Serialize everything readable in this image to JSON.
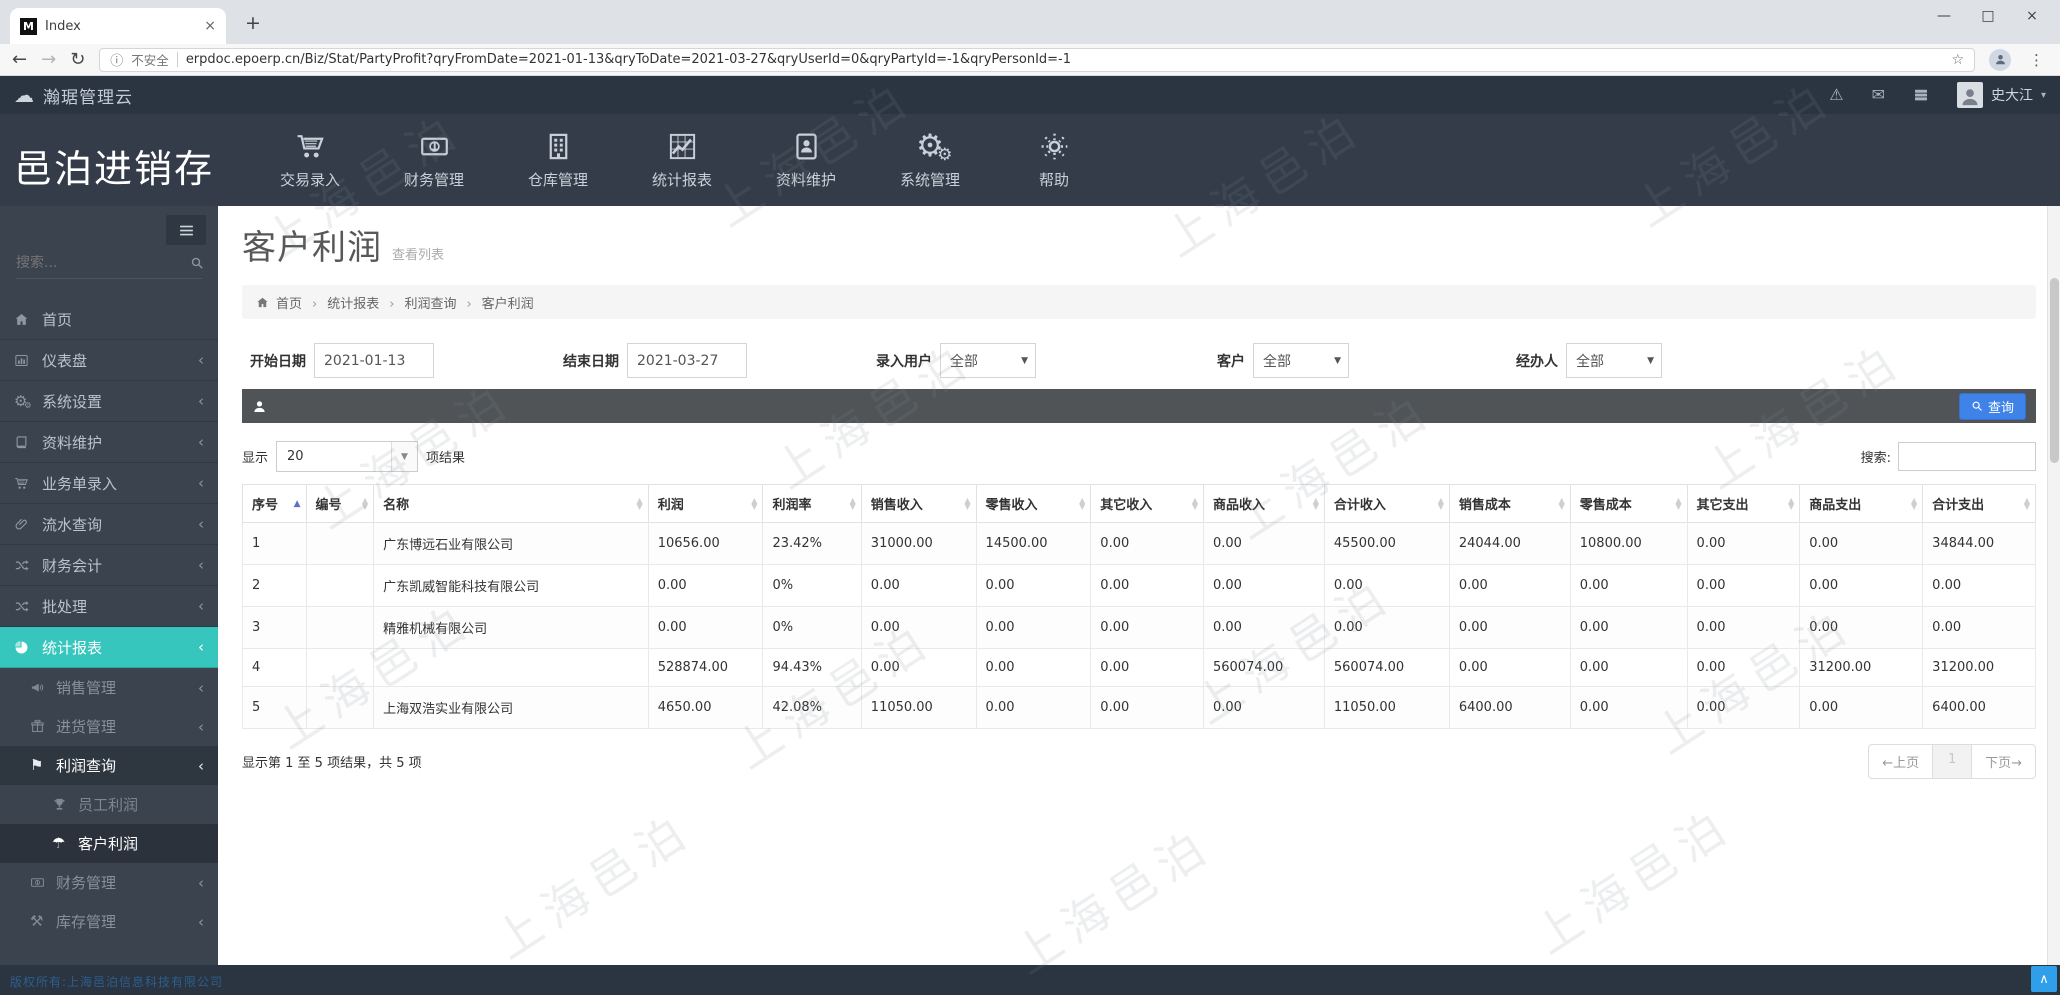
{
  "browser": {
    "tab": {
      "title": "Index",
      "favicon_letter": "M"
    },
    "security_label": "不安全",
    "url": "erpdoc.epoerp.cn/Biz/Stat/PartyProfit?qryFromDate=2021-01-13&qryToDate=2021-03-27&qryUserId=0&qryPartyId=-1&qryPersonId=-1"
  },
  "appbar": {
    "brand": "瀚琚管理云",
    "username": "史大江"
  },
  "navband": {
    "app_title": "邑泊进销存"
  },
  "top_menu": [
    {
      "key": "transaction-entry",
      "icon": "cart-icon",
      "label": "交易录入"
    },
    {
      "key": "finance-management",
      "icon": "banknote-icon",
      "label": "财务管理"
    },
    {
      "key": "warehouse-management",
      "icon": "building-icon",
      "label": "仓库管理"
    },
    {
      "key": "statistics-reports",
      "icon": "chart-icon",
      "label": "统计报表"
    },
    {
      "key": "data-maintenance",
      "icon": "idcard-icon",
      "label": "资料维护"
    },
    {
      "key": "system-management",
      "icon": "gears-icon",
      "label": "系统管理"
    },
    {
      "key": "help",
      "icon": "sun-icon",
      "label": "帮助"
    }
  ],
  "sidebar": {
    "search_placeholder": "搜索...",
    "items": [
      {
        "key": "home",
        "icon": "home-icon",
        "label": "首页",
        "chevron": false
      },
      {
        "key": "dashboard",
        "icon": "chart-bars-icon",
        "label": "仪表盘",
        "chevron": true
      },
      {
        "key": "system-settings",
        "icon": "gears-icon",
        "label": "系统设置",
        "chevron": true
      },
      {
        "key": "data-maintenance",
        "icon": "book-icon",
        "label": "资料维护",
        "chevron": true
      },
      {
        "key": "business-entry",
        "icon": "cart-icon",
        "label": "业务单录入",
        "chevron": true
      },
      {
        "key": "flow-query",
        "icon": "paperclip-icon",
        "label": "流水查询",
        "chevron": true
      },
      {
        "key": "financial-accounting",
        "icon": "shuffle-icon",
        "label": "财务会计",
        "chevron": true
      },
      {
        "key": "batch-processing",
        "icon": "shuffle-icon",
        "label": "批处理",
        "chevron": true
      },
      {
        "key": "statistics-reports",
        "icon": "pie-chart-icon",
        "label": "统计报表",
        "chevron": true,
        "active": true,
        "children": [
          {
            "key": "sales-management",
            "icon": "megaphone-icon",
            "label": "销售管理",
            "chevron": true
          },
          {
            "key": "purchase-management",
            "icon": "gift-icon",
            "label": "进货管理",
            "chevron": true
          },
          {
            "key": "profit-query",
            "icon": "flag-icon",
            "label": "利润查询",
            "chevron": true,
            "open": true,
            "children": [
              {
                "key": "employee-profit",
                "icon": "trophy-icon",
                "label": "员工利润"
              },
              {
                "key": "customer-profit",
                "icon": "umbrella-icon",
                "label": "客户利润",
                "active": true
              }
            ]
          },
          {
            "key": "finance-management",
            "icon": "banknote-icon",
            "label": "财务管理",
            "chevron": true
          },
          {
            "key": "inventory-management",
            "icon": "tools-icon",
            "label": "库存管理",
            "chevron": true
          }
        ]
      }
    ]
  },
  "page": {
    "title": "客户利润",
    "subtitle": "查看列表",
    "breadcrumb": [
      "首页",
      "统计报表",
      "利润查询",
      "客户利润"
    ]
  },
  "filters": [
    {
      "key": "from-date",
      "label": "开始日期",
      "value": "2021-01-13",
      "control": "input"
    },
    {
      "key": "to-date",
      "label": "结束日期",
      "value": "2021-03-27",
      "control": "input"
    },
    {
      "key": "entry-user",
      "label": "录入用户",
      "value": "全部",
      "control": "select"
    },
    {
      "key": "customer",
      "label": "客户",
      "value": "全部",
      "control": "select"
    },
    {
      "key": "handler",
      "label": "经办人",
      "value": "全部",
      "control": "select"
    }
  ],
  "query_bar": {
    "button_label": "查询"
  },
  "table": {
    "show_label": "显示",
    "page_size": "20",
    "results_suffix": "项结果",
    "search_label": "搜索:",
    "columns": [
      "序号",
      "编号",
      "名称",
      "利润",
      "利润率",
      "销售收入",
      "零售收入",
      "其它收入",
      "商品收入",
      "合计收入",
      "销售成本",
      "零售成本",
      "其它支出",
      "商品支出",
      "合计支出"
    ],
    "rows": [
      [
        "1",
        "",
        "广东博远石业有限公司",
        "10656.00",
        "23.42%",
        "31000.00",
        "14500.00",
        "0.00",
        "0.00",
        "45500.00",
        "24044.00",
        "10800.00",
        "0.00",
        "0.00",
        "34844.00"
      ],
      [
        "2",
        "",
        "广东凯威智能科技有限公司",
        "0.00",
        "0%",
        "0.00",
        "0.00",
        "0.00",
        "0.00",
        "0.00",
        "0.00",
        "0.00",
        "0.00",
        "0.00",
        "0.00"
      ],
      [
        "3",
        "",
        "精雅机械有限公司",
        "0.00",
        "0%",
        "0.00",
        "0.00",
        "0.00",
        "0.00",
        "0.00",
        "0.00",
        "0.00",
        "0.00",
        "0.00",
        "0.00"
      ],
      [
        "4",
        "",
        "",
        "528874.00",
        "94.43%",
        "0.00",
        "0.00",
        "0.00",
        "560074.00",
        "560074.00",
        "0.00",
        "0.00",
        "0.00",
        "31200.00",
        "31200.00"
      ],
      [
        "5",
        "",
        "上海双浩实业有限公司",
        "4650.00",
        "42.08%",
        "11050.00",
        "0.00",
        "0.00",
        "0.00",
        "11050.00",
        "6400.00",
        "0.00",
        "0.00",
        "0.00",
        "6400.00"
      ]
    ],
    "footer_info": "显示第 1 至 5 项结果，共 5 项",
    "pagination": {
      "prev": "←上页",
      "current": "1",
      "next": "下页→"
    }
  },
  "footer": {
    "copyright": "版权所有:上海邑泊信息科技有限公司"
  },
  "watermark": {
    "text": "上海邑泊"
  },
  "colors": {
    "accent_teal": "#36c6bd",
    "primary_blue": "#3f82e8",
    "header_dark": "#2b3441",
    "sidebar_dark": "#3b434f"
  }
}
